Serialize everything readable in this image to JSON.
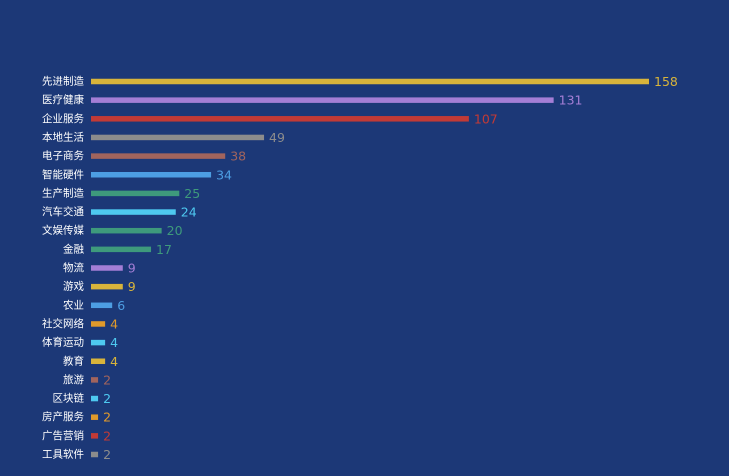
{
  "chart_data": {
    "type": "bar",
    "orientation": "horizontal",
    "title": "",
    "xlabel": "",
    "ylabel": "",
    "grid": false,
    "legend": "none",
    "xlim": [
      0,
      158
    ],
    "categories": [
      "先进制造",
      "医疗健康",
      "企业服务",
      "本地生活",
      "电子商务",
      "智能硬件",
      "生产制造",
      "汽车交通",
      "文娱传媒",
      "金融",
      "物流",
      "游戏",
      "农业",
      "社交网络",
      "体育运动",
      "教育",
      "旅游",
      "区块链",
      "房产服务",
      "广告营销",
      "工具软件"
    ],
    "values": [
      158,
      131,
      107,
      49,
      38,
      34,
      25,
      24,
      20,
      17,
      9,
      9,
      6,
      4,
      4,
      4,
      2,
      2,
      2,
      2,
      2
    ],
    "colors": [
      "#d8b43b",
      "#a47ed6",
      "#c23a36",
      "#8c8c8c",
      "#a1645d",
      "#4d9ee3",
      "#3e9a7c",
      "#4ec9f0",
      "#3e9a7c",
      "#3e9a7c",
      "#a47ed6",
      "#d8b43b",
      "#4d9ee3",
      "#e09a2b",
      "#4ec9f0",
      "#d8b43b",
      "#a1645d",
      "#4ec9f0",
      "#e09a2b",
      "#c23a36",
      "#8c8c8c"
    ]
  }
}
